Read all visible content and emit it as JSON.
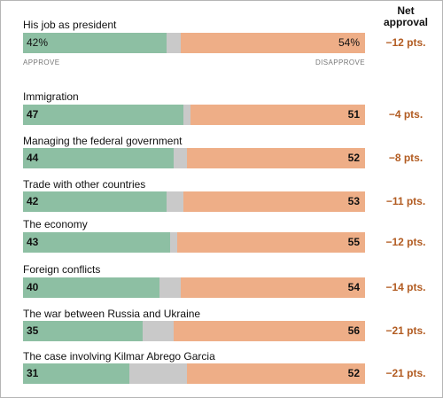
{
  "colors": {
    "approve": "#8dbfa3",
    "neutral": "#c9c9c9",
    "disapprove": "#eeae87",
    "net": "#b25c22"
  },
  "header": {
    "net_line1": "Net",
    "net_line2": "approval"
  },
  "axis": {
    "approve_label": "APPROVE",
    "disapprove_label": "DISAPPROVE"
  },
  "chart_data": {
    "type": "bar",
    "orientation": "horizontal-stacked",
    "scale_max": 100,
    "series_order": [
      "approve",
      "neutral",
      "disapprove"
    ],
    "rows": [
      {
        "label": "His job as president",
        "approve": 42,
        "disapprove": 54,
        "approve_text": "42%",
        "disapprove_text": "54%",
        "net": "−12 pts."
      },
      {
        "label": "Immigration",
        "approve": 47,
        "disapprove": 51,
        "approve_text": "47",
        "disapprove_text": "51",
        "net": "−4 pts."
      },
      {
        "label": "Managing the federal government",
        "approve": 44,
        "disapprove": 52,
        "approve_text": "44",
        "disapprove_text": "52",
        "net": "−8 pts."
      },
      {
        "label": "Trade with other countries",
        "approve": 42,
        "disapprove": 53,
        "approve_text": "42",
        "disapprove_text": "53",
        "net": "−11 pts."
      },
      {
        "label": "The economy",
        "approve": 43,
        "disapprove": 55,
        "approve_text": "43",
        "disapprove_text": "55",
        "net": "−12 pts."
      },
      {
        "label": "Foreign conflicts",
        "approve": 40,
        "disapprove": 54,
        "approve_text": "40",
        "disapprove_text": "54",
        "net": "−14 pts."
      },
      {
        "label": "The war between Russia and Ukraine",
        "approve": 35,
        "disapprove": 56,
        "approve_text": "35",
        "disapprove_text": "56",
        "net": "−21 pts."
      },
      {
        "label": "The case involving Kilmar Abrego Garcia",
        "approve": 31,
        "disapprove": 52,
        "approve_text": "31",
        "disapprove_text": "52",
        "net": "−21 pts."
      }
    ]
  }
}
